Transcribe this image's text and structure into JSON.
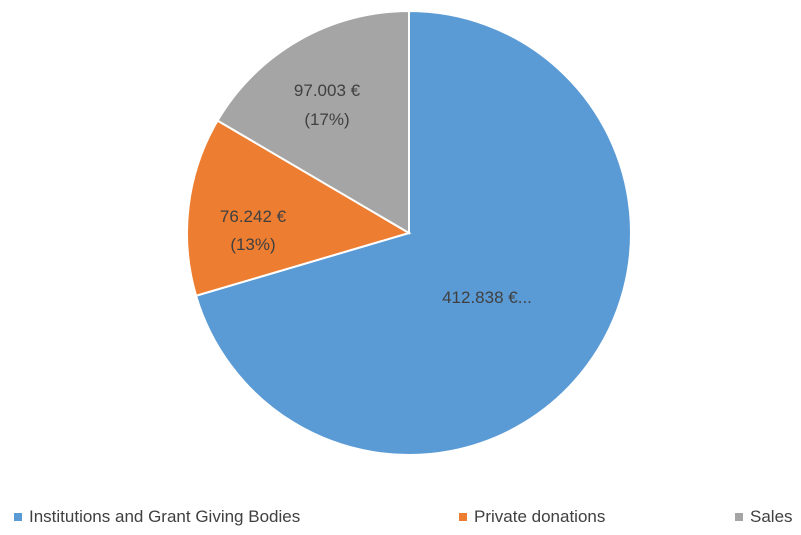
{
  "chart_data": {
    "type": "pie",
    "title": "",
    "currency_unit": "€",
    "slices": [
      {
        "name": "Institutions and Grant Giving Bodies",
        "value": 412838,
        "percent": 70,
        "label": "412.838 €...",
        "color": "#5B9BD5"
      },
      {
        "name": "Private donations",
        "value": 76242,
        "percent": 13,
        "label_value": "76.242 €",
        "label_percent": "(13%)",
        "color": "#ED7D31"
      },
      {
        "name": "Sales",
        "value": 97003,
        "percent": 17,
        "label_value": "97.003 €",
        "label_percent": "(17%)",
        "color": "#A5A5A5"
      }
    ],
    "legend_position": "bottom",
    "start_angle": "12 o'clock",
    "direction": "clockwise"
  }
}
